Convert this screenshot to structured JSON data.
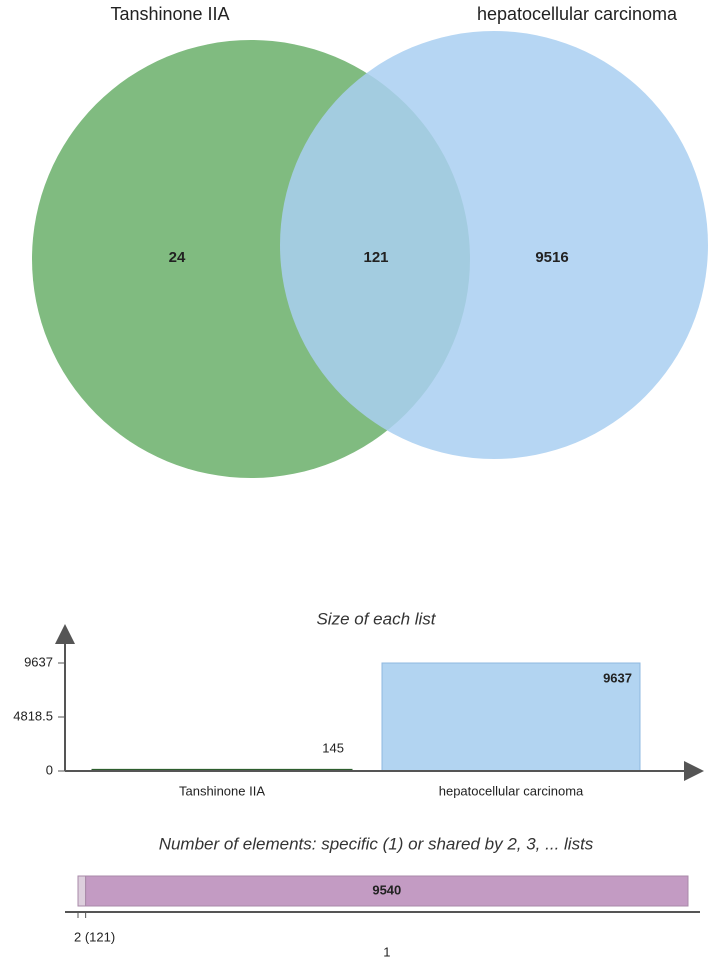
{
  "chart_data": [
    {
      "type": "venn",
      "sets": [
        {
          "name": "Tanshinone IIA",
          "color": "#6aaf6a"
        },
        {
          "name": "hepatocellular carcinoma",
          "color": "#a9cff1"
        }
      ],
      "values": [
        24,
        121,
        9516
      ]
    },
    {
      "type": "bar",
      "title": "Size of each list",
      "categories": [
        "Tanshinone IIA",
        "hepatocellular carcinoma"
      ],
      "values": [
        145,
        9637
      ],
      "colors": [
        "#2f5f2f",
        "#b2d4f1"
      ],
      "label_colors": [
        "#7cba7c",
        "#ffffff"
      ],
      "ylim": [
        0,
        12760
      ],
      "yticks": [
        0,
        4818.5,
        9637
      ]
    },
    {
      "type": "stacked-hbar",
      "title": "Number of elements: specific (1) or shared by 2, 3, ... lists",
      "categories": [
        "2 (121)",
        "1"
      ],
      "values": [
        121,
        9540
      ],
      "colors": [
        "#ddcfdd",
        "#c39bc3"
      ]
    }
  ]
}
